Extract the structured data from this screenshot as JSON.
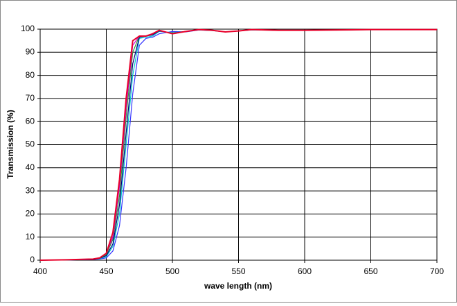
{
  "chart_data": {
    "type": "line",
    "x_label": "wave length (nm)",
    "y_label": "Transmission (%)",
    "x": [
      400,
      420,
      440,
      445,
      450,
      455,
      460,
      465,
      470,
      475,
      480,
      485,
      490,
      500,
      510,
      520,
      530,
      540,
      550,
      560,
      580,
      600,
      650,
      700
    ],
    "series": [
      {
        "color": "#3333ff",
        "values": [
          0,
          0.1,
          0.3,
          0.5,
          1,
          4,
          15,
          40,
          72,
          93,
          96,
          96.5,
          98,
          99,
          98.8,
          99.6,
          99.4,
          98.8,
          99.2,
          99.7,
          99.5,
          99.5,
          99.8,
          99.8
        ]
      },
      {
        "color": "#00cccc",
        "values": [
          0,
          0.1,
          0.4,
          0.7,
          1.5,
          6,
          20,
          50,
          80,
          96,
          96.5,
          97,
          99,
          98.5,
          99,
          99.7,
          99.4,
          98.8,
          99.2,
          99.7,
          99.5,
          99.5,
          99.8,
          99.8
        ]
      },
      {
        "color": "#000080",
        "values": [
          0,
          0.1,
          0.4,
          0.8,
          2,
          7,
          24,
          55,
          85,
          96.5,
          97,
          97.5,
          99.2,
          98.3,
          99,
          99.8,
          99.5,
          98.8,
          99.2,
          99.8,
          99.5,
          99.5,
          99.8,
          99.8
        ]
      },
      {
        "color": "#339933",
        "values": [
          0,
          0.1,
          0.5,
          0.9,
          2.5,
          9,
          28,
          62,
          90,
          97,
          97,
          98,
          99.3,
          98.2,
          99,
          99.8,
          99.5,
          98.8,
          99.2,
          99.8,
          99.5,
          99.5,
          99.8,
          99.8
        ]
      },
      {
        "color": "#cc00cc",
        "values": [
          0,
          0.2,
          0.5,
          1,
          3,
          10,
          32,
          66,
          93,
          97,
          97,
          98,
          99.4,
          98.1,
          99,
          99.8,
          99.5,
          98.8,
          99.2,
          99.8,
          99.5,
          99.5,
          99.8,
          99.8
        ]
      },
      {
        "color": "#e8002a",
        "values": [
          0,
          0.2,
          0.5,
          1,
          3,
          12,
          35,
          70,
          95,
          97,
          97,
          98,
          99.5,
          98,
          99,
          99.8,
          99.5,
          98.8,
          99.2,
          99.8,
          99.5,
          99.5,
          99.8,
          99.8
        ]
      }
    ],
    "xlim": [
      400,
      700
    ],
    "xticks": [
      400,
      450,
      500,
      550,
      600,
      650,
      700
    ],
    "ylim": [
      0,
      100
    ],
    "yticks": [
      0,
      10,
      20,
      30,
      40,
      50,
      60,
      70,
      80,
      90,
      100
    ],
    "grid": true
  }
}
